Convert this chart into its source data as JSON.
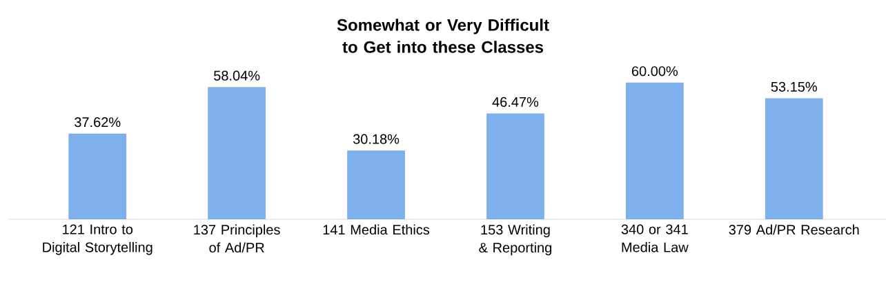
{
  "chart_data": {
    "type": "bar",
    "title": "Somewhat or Very Difficult to Get into these Classes",
    "categories": [
      "121 Intro to Digital Storytelling",
      "137 Principles of Ad/PR",
      "141 Media Ethics",
      "153 Writing & Reporting",
      "340 or 341 Media Law",
      "379 Ad/PR Research"
    ],
    "values": [
      37.62,
      58.04,
      30.18,
      46.47,
      60.0,
      53.15
    ],
    "value_labels": [
      "37.62%",
      "58.04%",
      "30.18%",
      "46.47%",
      "60.00%",
      "53.15%"
    ],
    "color": "#7fb0ee"
  }
}
